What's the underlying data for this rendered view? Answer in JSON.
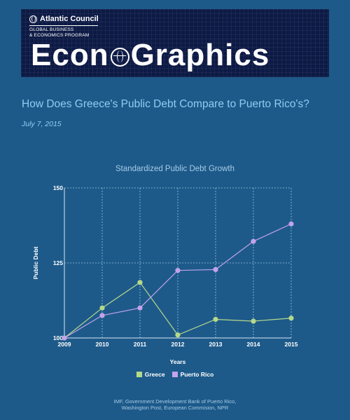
{
  "banner": {
    "org": "Atlantic Council",
    "program_line1": "GLOBAL BUSINESS",
    "program_line2": "& ECONOMICS PROGRAM",
    "wordmark_left": "Econ",
    "wordmark_right": "Graphics",
    "globe_icon": "globe-icon"
  },
  "article": {
    "headline": "How Does Greece's Public Debt Compare to Puerto Rico's?",
    "date": "July 7, 2015"
  },
  "source": {
    "line1": "IMF, Government Development Bank of Puerto Rico,",
    "line2": "Washington Post, European Commision, NPR"
  },
  "colors": {
    "background": "#1d5a8a",
    "banner": "#0d1a45",
    "headline": "#8ecdf2",
    "greece": "#b5d98a",
    "puerto_rico": "#c3a3ea",
    "grid": "#9cc3e0"
  },
  "chart_data": {
    "type": "line",
    "title": "Standardized Public Debt Growth",
    "xlabel": "Years",
    "ylabel": "Public Debt",
    "x": [
      2009,
      2010,
      2011,
      2012,
      2013,
      2014,
      2015
    ],
    "ylim": [
      100,
      150
    ],
    "yticks": [
      100,
      125,
      150
    ],
    "grid": true,
    "legend_position": "bottom",
    "series": [
      {
        "name": "Greece",
        "color": "#b5d98a",
        "values": [
          100,
          110,
          118.5,
          101,
          106.2,
          105.6,
          106.6
        ]
      },
      {
        "name": "Puerto Rico",
        "color": "#c3a3ea",
        "values": [
          100,
          107.5,
          110,
          122.5,
          122.8,
          132.2,
          138
        ]
      }
    ]
  }
}
